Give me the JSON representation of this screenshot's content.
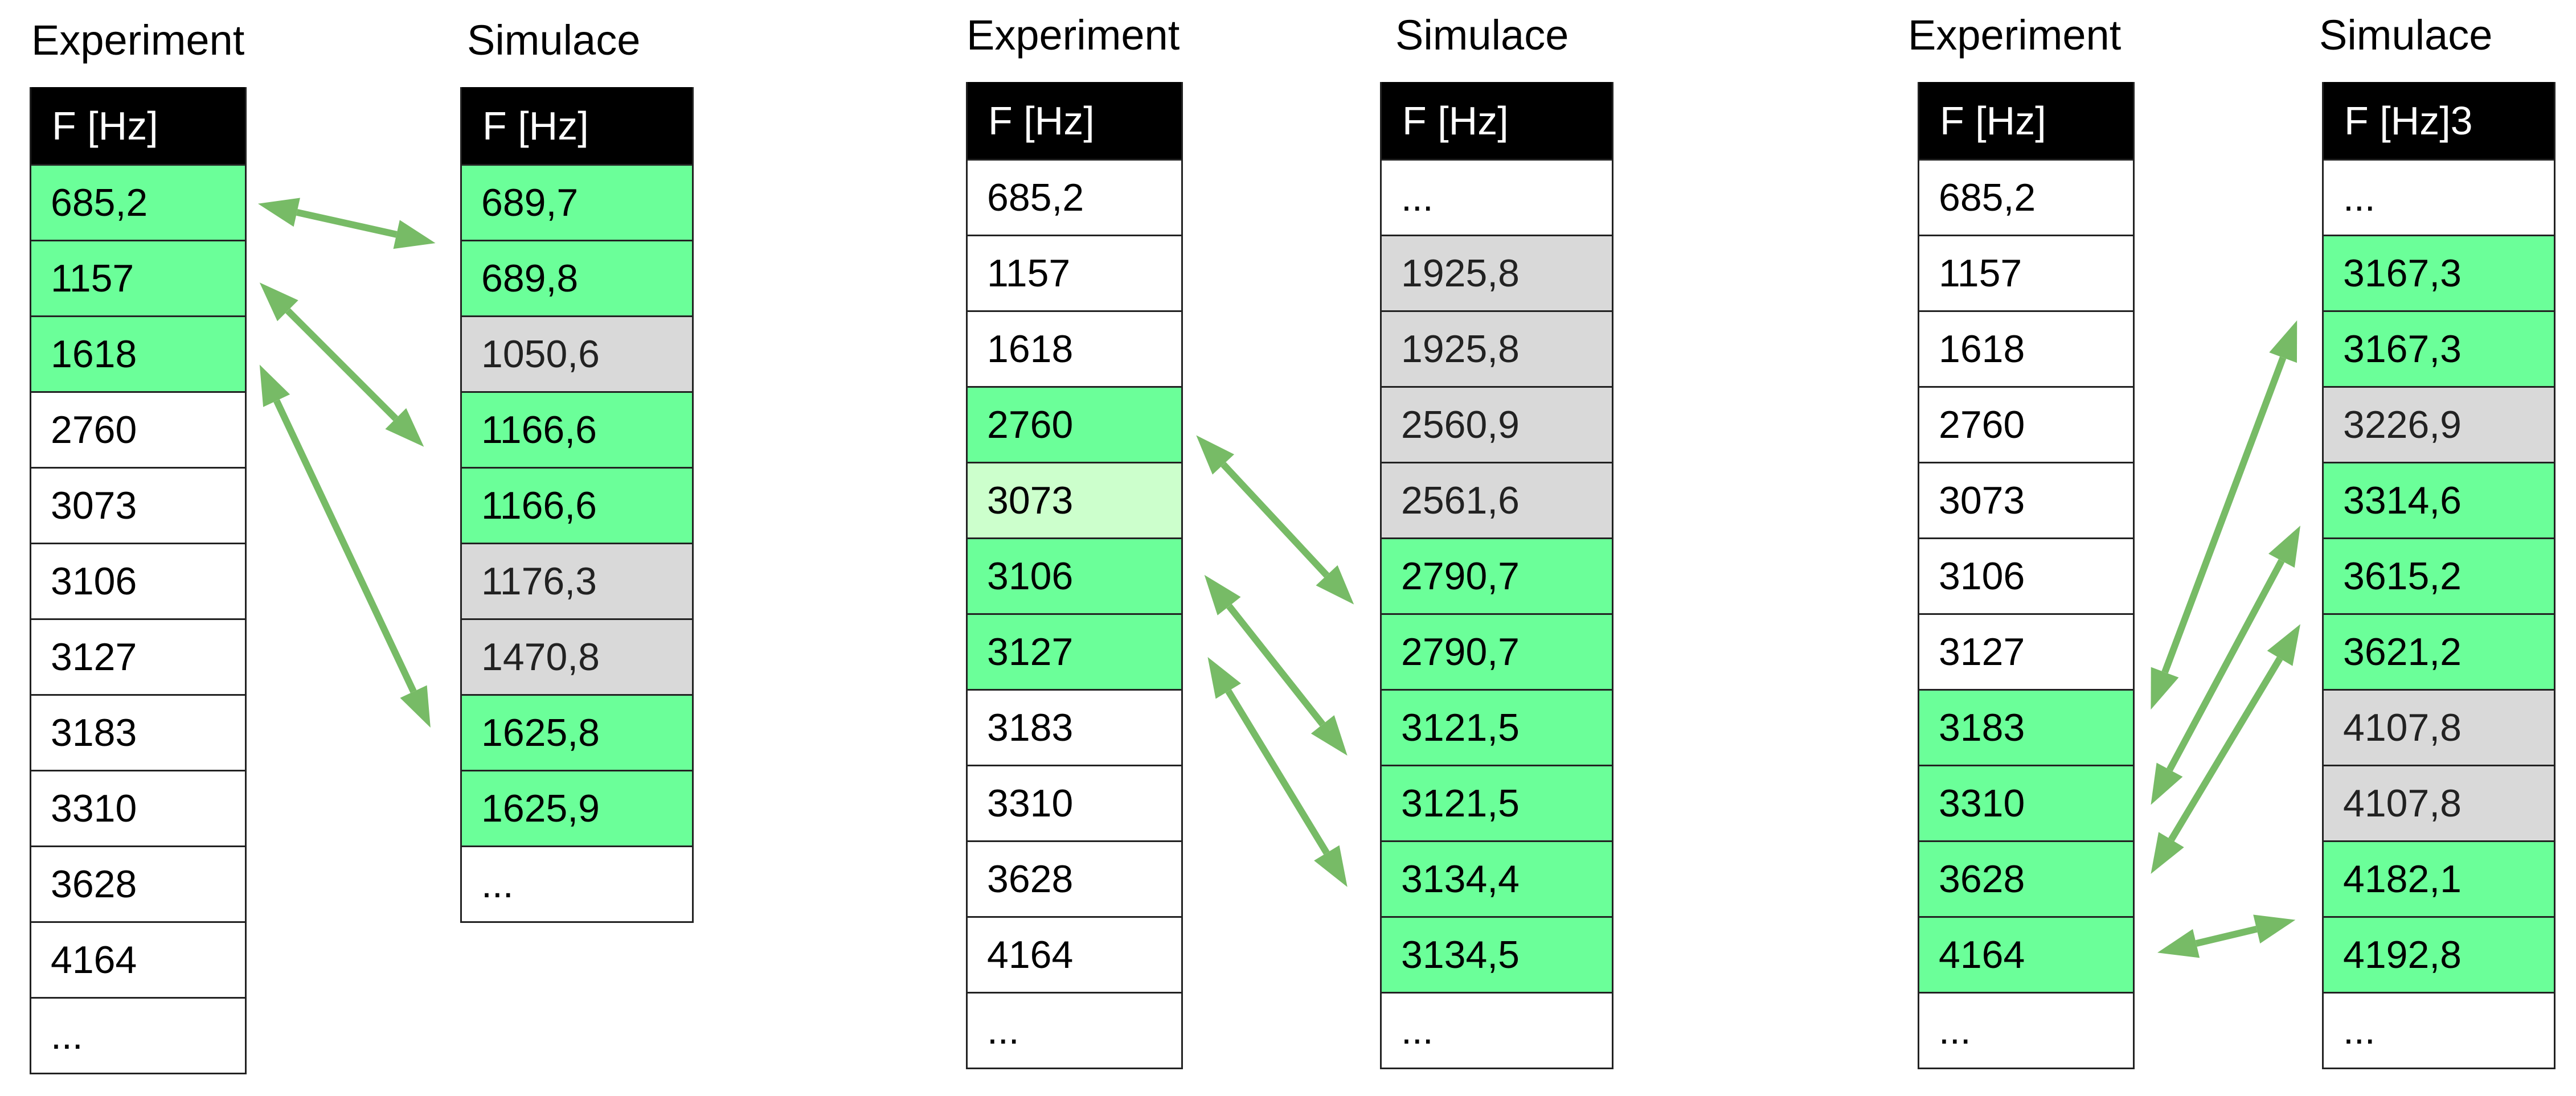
{
  "colors": {
    "match": "#6bff99",
    "partial": "#ccffcc",
    "unmatched": "#d9d9d9",
    "header": "#000000",
    "arrow": "#77bb66"
  },
  "groups": [
    {
      "experiment": {
        "title": "Experiment",
        "header": "F [Hz]",
        "rows": [
          {
            "value": "685,2",
            "status": "green"
          },
          {
            "value": "1157",
            "status": "green"
          },
          {
            "value": "1618",
            "status": "green"
          },
          {
            "value": "2760",
            "status": "white"
          },
          {
            "value": "3073",
            "status": "white"
          },
          {
            "value": "3106",
            "status": "white"
          },
          {
            "value": "3127",
            "status": "white"
          },
          {
            "value": "3183",
            "status": "white"
          },
          {
            "value": "3310",
            "status": "white"
          },
          {
            "value": "3628",
            "status": "white"
          },
          {
            "value": "4164",
            "status": "white"
          },
          {
            "value": "...",
            "status": "white"
          }
        ]
      },
      "simulation": {
        "title": "Simulace",
        "header": "F [Hz]",
        "rows": [
          {
            "value": "689,7",
            "status": "green"
          },
          {
            "value": "689,8",
            "status": "green"
          },
          {
            "value": "1050,6",
            "status": "gray"
          },
          {
            "value": "1166,6",
            "status": "green"
          },
          {
            "value": "1166,6",
            "status": "green"
          },
          {
            "value": "1176,3",
            "status": "gray"
          },
          {
            "value": "1470,8",
            "status": "gray"
          },
          {
            "value": "1625,8",
            "status": "green"
          },
          {
            "value": "1625,9",
            "status": "green"
          },
          {
            "value": "...",
            "status": "white"
          }
        ]
      }
    },
    {
      "experiment": {
        "title": "Experiment",
        "header": "F [Hz]",
        "rows": [
          {
            "value": "685,2",
            "status": "white"
          },
          {
            "value": "1157",
            "status": "white"
          },
          {
            "value": "1618",
            "status": "white"
          },
          {
            "value": "2760",
            "status": "green"
          },
          {
            "value": "3073",
            "status": "light"
          },
          {
            "value": "3106",
            "status": "green"
          },
          {
            "value": "3127",
            "status": "green"
          },
          {
            "value": "3183",
            "status": "white"
          },
          {
            "value": "3310",
            "status": "white"
          },
          {
            "value": "3628",
            "status": "white"
          },
          {
            "value": "4164",
            "status": "white"
          },
          {
            "value": "...",
            "status": "white"
          }
        ]
      },
      "simulation": {
        "title": "Simulace",
        "header": "F [Hz]",
        "rows": [
          {
            "value": "...",
            "status": "white"
          },
          {
            "value": "1925,8",
            "status": "gray"
          },
          {
            "value": "1925,8",
            "status": "gray"
          },
          {
            "value": "2560,9",
            "status": "gray"
          },
          {
            "value": "2561,6",
            "status": "gray"
          },
          {
            "value": "2790,7",
            "status": "green"
          },
          {
            "value": "2790,7",
            "status": "green"
          },
          {
            "value": "3121,5",
            "status": "green"
          },
          {
            "value": "3121,5",
            "status": "green"
          },
          {
            "value": "3134,4",
            "status": "green"
          },
          {
            "value": "3134,5",
            "status": "green"
          },
          {
            "value": "...",
            "status": "white"
          }
        ]
      }
    },
    {
      "experiment": {
        "title": "Experiment",
        "header": "F [Hz]",
        "rows": [
          {
            "value": "685,2",
            "status": "white"
          },
          {
            "value": "1157",
            "status": "white"
          },
          {
            "value": "1618",
            "status": "white"
          },
          {
            "value": "2760",
            "status": "white"
          },
          {
            "value": "3073",
            "status": "white"
          },
          {
            "value": "3106",
            "status": "white"
          },
          {
            "value": "3127",
            "status": "white"
          },
          {
            "value": "3183",
            "status": "green"
          },
          {
            "value": "3310",
            "status": "green"
          },
          {
            "value": "3628",
            "status": "green"
          },
          {
            "value": "4164",
            "status": "green"
          },
          {
            "value": "...",
            "status": "white"
          }
        ]
      },
      "simulation": {
        "title": "Simulace",
        "header": "F [Hz]3",
        "rows": [
          {
            "value": "...",
            "status": "white"
          },
          {
            "value": "3167,3",
            "status": "green"
          },
          {
            "value": "3167,3",
            "status": "green"
          },
          {
            "value": "3226,9",
            "status": "gray"
          },
          {
            "value": "3314,6",
            "status": "green"
          },
          {
            "value": "3615,2",
            "status": "green"
          },
          {
            "value": "3621,2",
            "status": "green"
          },
          {
            "value": "4107,8",
            "status": "gray"
          },
          {
            "value": "4107,8",
            "status": "gray"
          },
          {
            "value": "4182,1",
            "status": "green"
          },
          {
            "value": "4192,8",
            "status": "green"
          },
          {
            "value": "...",
            "status": "white"
          }
        ]
      }
    }
  ]
}
